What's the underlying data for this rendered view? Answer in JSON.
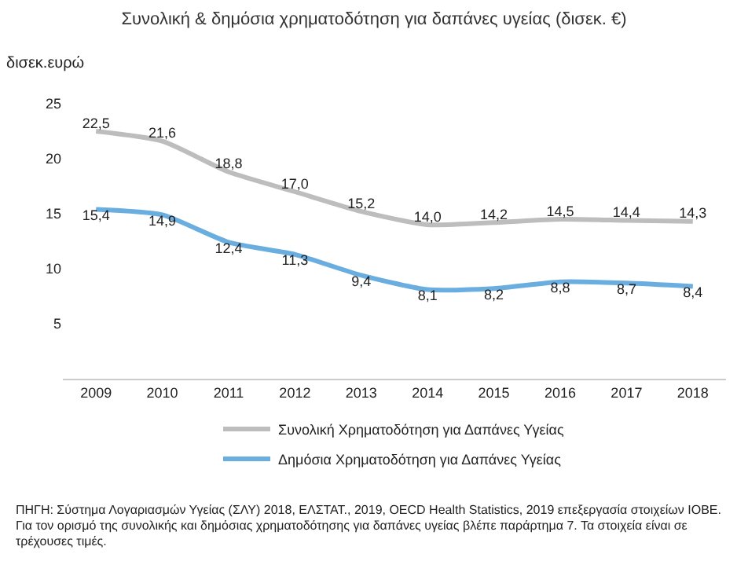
{
  "chart_data": {
    "type": "line",
    "title": "Συνολική & δημόσια χρηματοδότηση για δαπάνες υγείας (δισεκ. €)",
    "ylabel": "δισεκ.ευρώ",
    "categories": [
      "2009",
      "2010",
      "2011",
      "2012",
      "2013",
      "2014",
      "2015",
      "2016",
      "2017",
      "2018"
    ],
    "series": [
      {
        "name": "Συνολική Χρηματοδότηση για Δαπάνες Υγείας",
        "color": "#bdbdbd",
        "values": [
          22.5,
          21.6,
          18.8,
          17.0,
          15.2,
          14.0,
          14.2,
          14.5,
          14.4,
          14.3
        ],
        "value_labels": [
          "22,5",
          "21,6",
          "18,8",
          "17,0",
          "15,2",
          "14,0",
          "14,2",
          "14,5",
          "14,4",
          "14,3"
        ]
      },
      {
        "name": "Δημόσια Χρηματοδότηση για Δαπάνες Υγείας",
        "color": "#6aaee0",
        "values": [
          15.4,
          14.9,
          12.4,
          11.3,
          9.4,
          8.1,
          8.2,
          8.8,
          8.7,
          8.4
        ],
        "value_labels": [
          "15,4",
          "14,9",
          "12,4",
          "11,3",
          "9,4",
          "8,1",
          "8,2",
          "8,8",
          "8,7",
          "8,4"
        ]
      }
    ],
    "ylim": [
      0,
      25
    ],
    "yticks": [
      5,
      10,
      15,
      20,
      25
    ],
    "grid": false,
    "legend": "bottom",
    "marker": "none",
    "line_style": "solid",
    "annotations": [
      "ΠΗΓΗ: Σύστημα Λογαριασμών Υγείας (ΣΛΥ) 2018, ΕΛΣΤΑΤ., 2019, OECD Health Statistics, 2019 επεξεργασία στοιχείων ΙΟΒΕ. Για τον ορισμό της συνολικής και δημόσιας χρηματοδότησης για δαπάνες υγείας βλέπε παράρτημα 7. Τα στοιχεία είναι σε τρέχουσες τιμές."
    ]
  }
}
